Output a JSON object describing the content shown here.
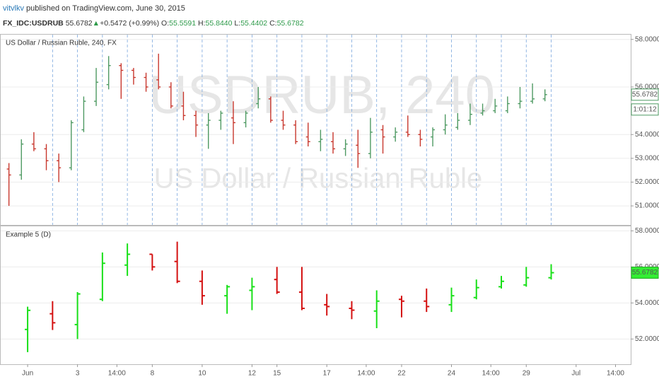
{
  "header": {
    "author": "vitvlkv",
    "published": "published on TradingView.com, June 30, 2015",
    "symbol": "FX_IDC:USDRUB",
    "price": "55.6782",
    "arrow": "▲",
    "change": "+0.5472 (+0.99%)",
    "ohlc": [
      {
        "label": "O:",
        "value": "55.5591"
      },
      {
        "label": "H:",
        "value": "55.8440"
      },
      {
        "label": "L:",
        "value": "55.4402"
      },
      {
        "label": "C:",
        "value": "55.6782"
      }
    ]
  },
  "chart_data": [
    {
      "type": "ohlc",
      "title": "US Dollar / Russian Ruble, 240, FX",
      "watermark": "USDRUB, 240",
      "watermark_subtitle": "US Dollar / Russian Ruble",
      "up_color": "#4f9a63",
      "down_color": "#c8372d",
      "grid": true,
      "xlim": [
        -1.08,
        24.19
      ],
      "ylim": [
        50.2,
        58.2
      ],
      "yticks": [
        {
          "value": 51,
          "label": "51.0000"
        },
        {
          "value": 52,
          "label": "52.0000"
        },
        {
          "value": 53,
          "label": "53.0000"
        },
        {
          "value": 54,
          "label": "54.0000"
        },
        {
          "value": 56,
          "label": "56.0000"
        },
        {
          "value": 58,
          "label": "58.0000"
        }
      ],
      "last_price": {
        "value": 55.6782,
        "label": "55.6782"
      },
      "countdown": "1:01:12",
      "x": [
        -0.75,
        -0.25,
        0.25,
        0.75,
        1.25,
        1.75,
        2.25,
        2.75,
        3.25,
        3.75,
        4.25,
        4.75,
        5.25,
        5.75,
        6.25,
        6.75,
        7.25,
        7.75,
        8.25,
        8.75,
        9.25,
        9.75,
        10.25,
        10.75,
        11.25,
        11.75,
        12.25,
        12.75,
        13.25,
        13.75,
        14.25,
        14.75,
        15.25,
        15.75,
        16.25,
        16.75,
        17.25,
        17.75,
        18.25,
        18.75,
        19.25,
        19.75,
        20.25,
        20.75
      ],
      "open": [
        52.55,
        52.3,
        53.6,
        53.4,
        52.9,
        52.6,
        54.2,
        55.4,
        56.1,
        56.9,
        56.7,
        56.4,
        56.3,
        56.0,
        55.2,
        54.8,
        54.4,
        54.6,
        54.7,
        54.5,
        55.3,
        55.5,
        54.6,
        54.4,
        53.9,
        53.7,
        53.7,
        53.4,
        53.55,
        53.2,
        54.2,
        53.9,
        54.1,
        54.0,
        53.9,
        54.2,
        54.3,
        54.6,
        54.9,
        55.0,
        55.0,
        55.3,
        55.4,
        55.5
      ],
      "high": [
        52.8,
        53.8,
        54.1,
        53.6,
        53.2,
        54.6,
        55.6,
        56.8,
        57.3,
        57.0,
        56.8,
        56.6,
        57.4,
        56.2,
        55.8,
        55.0,
        54.9,
        55.0,
        55.4,
        55.0,
        56.0,
        55.6,
        55.0,
        54.6,
        54.5,
        54.2,
        54.1,
        53.8,
        54.2,
        54.7,
        54.4,
        54.3,
        54.8,
        54.2,
        54.3,
        54.85,
        54.9,
        55.3,
        55.3,
        55.5,
        55.6,
        56.0,
        56.15,
        55.9
      ],
      "low": [
        51.0,
        52.1,
        53.3,
        52.5,
        52.0,
        52.5,
        54.1,
        55.2,
        55.9,
        55.5,
        56.1,
        55.8,
        55.9,
        55.1,
        54.6,
        53.9,
        53.4,
        54.2,
        53.6,
        54.3,
        55.1,
        54.5,
        54.2,
        53.6,
        53.5,
        53.3,
        53.2,
        53.1,
        52.6,
        53.0,
        53.2,
        53.7,
        53.9,
        53.5,
        53.5,
        54.0,
        54.2,
        54.4,
        54.8,
        54.9,
        54.9,
        55.1,
        55.3,
        55.4
      ],
      "close": [
        52.3,
        53.6,
        53.4,
        52.9,
        52.6,
        54.5,
        55.4,
        56.2,
        56.9,
        56.7,
        56.4,
        56.0,
        56.0,
        55.2,
        54.8,
        54.4,
        54.6,
        54.9,
        54.5,
        54.9,
        55.5,
        54.6,
        54.4,
        53.7,
        53.7,
        53.8,
        53.4,
        53.6,
        53.2,
        54.1,
        53.9,
        54.1,
        54.0,
        53.8,
        54.2,
        54.4,
        54.6,
        54.85,
        55.0,
        55.2,
        55.3,
        55.4,
        55.5,
        55.6782
      ]
    },
    {
      "type": "ohlc",
      "title": "Example 5 (D)",
      "up_color": "#18e018",
      "down_color": "#d41010",
      "grid": true,
      "xlim": [
        -1.08,
        24.19
      ],
      "ylim": [
        50.6,
        58.25
      ],
      "yticks": [
        {
          "value": 52,
          "label": "52.0000"
        },
        {
          "value": 54,
          "label": "54.0000"
        },
        {
          "value": 56,
          "label": "56.0000"
        },
        {
          "value": 58,
          "label": "58.0000"
        }
      ],
      "xticks": [
        {
          "value": 0,
          "label": "Jun"
        },
        {
          "value": 2,
          "label": "3"
        },
        {
          "value": 3.58,
          "label": "14:00"
        },
        {
          "value": 5,
          "label": "8"
        },
        {
          "value": 7,
          "label": "10"
        },
        {
          "value": 9,
          "label": "12"
        },
        {
          "value": 10,
          "label": "15"
        },
        {
          "value": 12,
          "label": "17"
        },
        {
          "value": 13.58,
          "label": "14:00"
        },
        {
          "value": 15,
          "label": "22"
        },
        {
          "value": 17,
          "label": "24"
        },
        {
          "value": 18.58,
          "label": "14:00"
        },
        {
          "value": 20,
          "label": "29"
        },
        {
          "value": 22,
          "label": "Jul"
        },
        {
          "value": 23.58,
          "label": "14:00"
        }
      ],
      "last_price": {
        "value": 55.6782,
        "label": "55.6782"
      },
      "x": [
        0,
        1,
        2,
        3,
        4,
        5,
        6,
        7,
        8,
        9,
        10,
        11,
        12,
        13,
        14,
        15,
        16,
        17,
        18,
        19,
        20,
        21
      ],
      "open": [
        52.53,
        53.4,
        52.8,
        54.2,
        56.1,
        56.7,
        56.3,
        55.2,
        54.4,
        54.7,
        55.3,
        54.6,
        53.9,
        53.7,
        53.55,
        54.2,
        54.1,
        53.9,
        54.3,
        54.9,
        55.0,
        55.4
      ],
      "high": [
        53.79,
        54.1,
        54.6,
        56.8,
        57.3,
        56.7,
        57.4,
        55.8,
        55.0,
        55.4,
        56.0,
        56.0,
        54.5,
        54.1,
        54.7,
        54.4,
        54.8,
        54.85,
        55.3,
        55.5,
        56.0,
        56.15
      ],
      "low": [
        51.27,
        52.5,
        52.0,
        54.1,
        55.5,
        55.8,
        55.1,
        53.9,
        53.4,
        53.6,
        54.5,
        53.6,
        53.3,
        53.1,
        52.6,
        53.2,
        53.5,
        53.5,
        54.2,
        54.8,
        54.9,
        55.3
      ],
      "close": [
        53.59,
        52.9,
        54.5,
        56.2,
        56.7,
        56.0,
        55.2,
        54.4,
        54.9,
        54.9,
        54.6,
        53.7,
        53.8,
        53.6,
        54.1,
        54.1,
        53.8,
        54.4,
        54.85,
        55.2,
        55.4,
        55.6782
      ]
    }
  ]
}
